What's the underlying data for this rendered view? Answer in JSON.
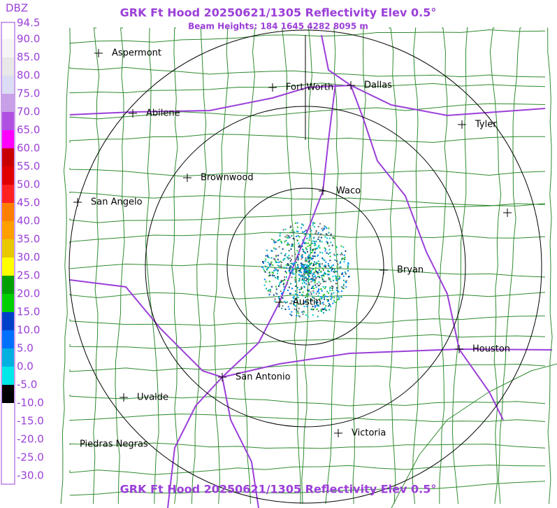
{
  "header": {
    "title": "GRK Ft Hood 20250621/1305 Reflectivity Elev 0.5°",
    "subtitle": "Beam Heights: 184 1645 4282 8095 m",
    "footer": "GRK Ft Hood 20250621/1305 Reflectivity Elev 0.5°"
  },
  "legend": {
    "unit": "DBZ",
    "labels": [
      "94.5",
      "90.0",
      "85.0",
      "80.0",
      "75.0",
      "70.0",
      "65.0",
      "60.0",
      "55.0",
      "50.0",
      "45.0",
      "40.0",
      "35.0",
      "30.0",
      "25.0",
      "20.0",
      "15.0",
      "10.0",
      "5.0",
      "0.0",
      "-5.0",
      "-10.0",
      "-15.0",
      "-20.0",
      "-25.0",
      "-30.0"
    ]
  },
  "cities": [
    "Aspermont",
    "Fort Worth",
    "Dallas",
    "Abilene",
    "Tyler",
    "Brownwood",
    "Waco",
    "San Angelo",
    "Bryan",
    "Austin",
    "Houston",
    "San Antonio",
    "Uvalde",
    "Victoria",
    "Piedras Negras"
  ]
}
